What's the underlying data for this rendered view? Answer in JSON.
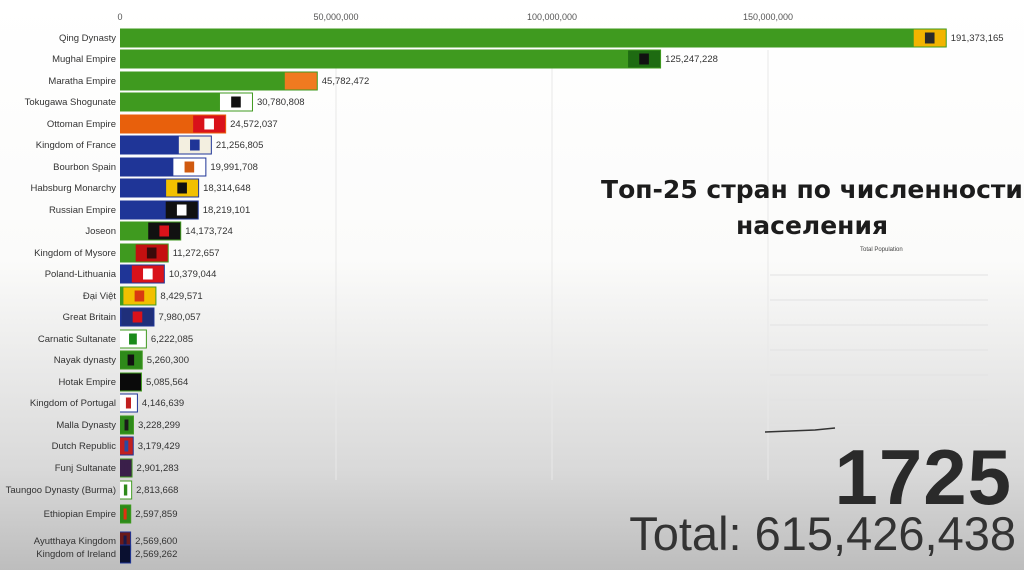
{
  "chart_data": {
    "type": "bar",
    "orientation": "horizontal",
    "title": "Топ-25 стран по численности населения",
    "xlim": [
      0,
      200000000
    ],
    "x_ticks": [
      0,
      50000000,
      100000000,
      150000000
    ],
    "x_tick_labels": [
      "0",
      "50,000,000",
      "100,000,000",
      "150,000,000"
    ],
    "grid": true,
    "year": "1725",
    "total_label": "Total: 615,426,438",
    "mini_chart_label": "Total Population",
    "categories": [
      "Qing Dynasty",
      "Mughal Empire",
      "Maratha Empire",
      "Tokugawa Shogunate",
      "Ottoman Empire",
      "Kingdom of France",
      "Bourbon Spain",
      "Habsburg Monarchy",
      "Russian Empire",
      "Joseon",
      "Kingdom of Mysore",
      "Poland-Lithuania",
      "Đại Việt",
      "Great Britain",
      "Carnatic Sultanate",
      "Nayak dynasty",
      "Hotak Empire",
      "Kingdom of Portugal",
      "Malla Dynasty",
      "Dutch Republic",
      "Funj Sultanate",
      "Taungoo Dynasty (Burma)",
      "Ethiopian Empire",
      "Ayutthaya Kingdom",
      "Kingdom of Ireland"
    ],
    "values": [
      191373165,
      125247228,
      45782472,
      30780808,
      24572037,
      21256805,
      19991708,
      18314648,
      18219101,
      14173724,
      11272657,
      10379044,
      8429571,
      7980057,
      6222085,
      5260300,
      5085564,
      4146639,
      3228299,
      3179429,
      2901283,
      2813668,
      2597859,
      2569600,
      2569262
    ],
    "value_labels": [
      "191,373,165",
      "125,247,228",
      "45,782,472",
      "30,780,808",
      "24,572,037",
      "21,256,805",
      "19,991,708",
      "18,314,648",
      "18,219,101",
      "14,173,724",
      "11,272,657",
      "10,379,044",
      "8,429,571",
      "7,980,057",
      "6,222,085",
      "5,260,300",
      "5,085,564",
      "4,146,639",
      "3,228,299",
      "3,179,429",
      "2,901,283",
      "2,813,668",
      "2,597,859",
      "2,569,600",
      "2,569,262"
    ],
    "bar_colors": [
      "#3f9a1f",
      "#3f9a1f",
      "#3f9a1f",
      "#3f9a1f",
      "#e8600c",
      "#1f3597",
      "#1f3597",
      "#1f3597",
      "#1f3597",
      "#3f9a1f",
      "#3f9a1f",
      "#1f3597",
      "#3f9a1f",
      "#1f3597",
      "#3f9a1f",
      "#3f9a1f",
      "#3f9a1f",
      "#1f3597",
      "#3f9a1f",
      "#1f3597",
      "#3f9a1f",
      "#3f9a1f",
      "#3f9a1f",
      "#1f3597",
      "#1f3597"
    ],
    "flag_colors": [
      [
        "#f2b400",
        "#2a2a2a"
      ],
      [
        "#1e6b12",
        "#111111"
      ],
      [
        "#f07a20",
        "#f07a20"
      ],
      [
        "#ffffff",
        "#111111"
      ],
      [
        "#d9121a",
        "#ffffff"
      ],
      [
        "#f3efe0",
        "#1f3597"
      ],
      [
        "#ffffff",
        "#d05a10"
      ],
      [
        "#f2c000",
        "#111111"
      ],
      [
        "#111111",
        "#ffffff"
      ],
      [
        "#111111",
        "#d9121a"
      ],
      [
        "#c41010",
        "#3a0a0a"
      ],
      [
        "#d9121a",
        "#ffffff"
      ],
      [
        "#f2c000",
        "#d93a10"
      ],
      [
        "#1f2f7a",
        "#d9121a"
      ],
      [
        "#ffffff",
        "#1a8a1a"
      ],
      [
        "#2e8a1a",
        "#111111"
      ],
      [
        "#0a0a0a",
        "#0a0a0a"
      ],
      [
        "#ffffff",
        "#c02020"
      ],
      [
        "#2e8a1a",
        "#1a1a1a"
      ],
      [
        "#c02020",
        "#2a4aa0"
      ],
      [
        "#3a1f4a",
        "#3a1f4a"
      ],
      [
        "#ffffff",
        "#2e8a1a"
      ],
      [
        "#2e8a1a",
        "#e03010"
      ],
      [
        "#6a1a1a",
        "#1a1a4a"
      ],
      [
        "#0a1030",
        "#0a1030"
      ]
    ]
  }
}
